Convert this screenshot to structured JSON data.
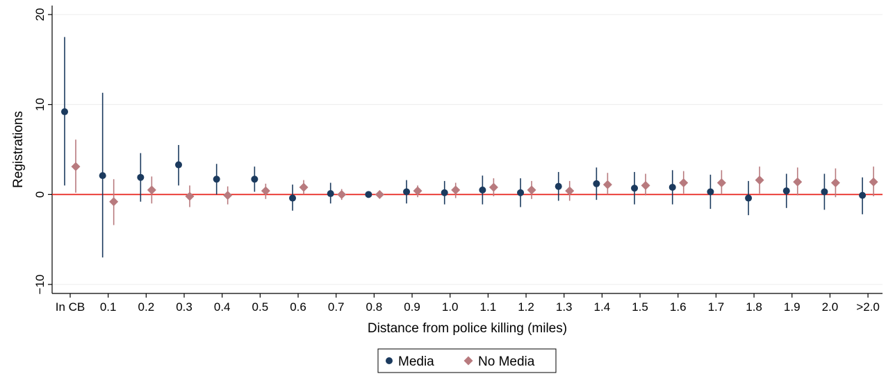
{
  "chart_data": {
    "type": "scatter",
    "xlabel": "Distance from police killing (miles)",
    "ylabel": "Registrations",
    "ylim": [
      -11,
      21
    ],
    "yticks": [
      -10,
      0,
      10,
      20
    ],
    "grid": true,
    "reference_line": {
      "y": 0,
      "color": "#e8221b"
    },
    "legend_position": "bottom-center",
    "categories": [
      "In CB",
      "0.1",
      "0.2",
      "0.3",
      "0.4",
      "0.5",
      "0.6",
      "0.7",
      "0.8",
      "0.9",
      "1.0",
      "1.1",
      "1.2",
      "1.3",
      "1.4",
      "1.5",
      "1.6",
      "1.7",
      "1.8",
      "1.9",
      "2.0",
      ">2.0"
    ],
    "series": [
      {
        "name": "Media",
        "marker": "circle",
        "color": "#1b3a5e",
        "values": [
          9.2,
          2.1,
          1.9,
          3.3,
          1.7,
          1.7,
          -0.4,
          0.1,
          0.0,
          0.3,
          0.2,
          0.5,
          0.2,
          0.9,
          1.2,
          0.7,
          0.8,
          0.3,
          -0.4,
          0.4,
          0.3,
          -0.1
        ],
        "lower": [
          1.0,
          -7.0,
          -0.8,
          1.0,
          0.0,
          0.3,
          -1.8,
          -1.0,
          0.0,
          -1.0,
          -1.1,
          -1.1,
          -1.4,
          -0.7,
          -0.6,
          -1.1,
          -1.1,
          -1.6,
          -2.3,
          -1.5,
          -1.7,
          -2.2
        ],
        "upper": [
          17.5,
          11.3,
          4.6,
          5.5,
          3.4,
          3.1,
          1.1,
          1.3,
          0.0,
          1.6,
          1.5,
          2.1,
          1.8,
          2.5,
          3.0,
          2.5,
          2.7,
          2.2,
          1.5,
          2.3,
          2.3,
          1.9
        ]
      },
      {
        "name": "No Media",
        "marker": "diamond",
        "color": "#b87a7e",
        "values": [
          3.1,
          -0.8,
          0.5,
          -0.2,
          -0.1,
          0.4,
          0.8,
          0.0,
          0.0,
          0.4,
          0.5,
          0.8,
          0.5,
          0.4,
          1.1,
          1.0,
          1.3,
          1.3,
          1.6,
          1.4,
          1.3,
          1.4
        ],
        "lower": [
          0.2,
          -3.4,
          -1.0,
          -1.4,
          -1.1,
          -0.5,
          0.0,
          -0.6,
          0.0,
          -0.3,
          -0.4,
          -0.2,
          -0.5,
          -0.7,
          0.0,
          -0.1,
          0.1,
          0.0,
          0.1,
          -0.1,
          -0.3,
          -0.2
        ],
        "upper": [
          6.1,
          1.7,
          2.0,
          1.0,
          0.9,
          1.2,
          1.6,
          0.6,
          0.0,
          1.0,
          1.3,
          1.8,
          1.5,
          1.5,
          2.4,
          2.3,
          2.6,
          2.7,
          3.1,
          3.0,
          2.9,
          3.1
        ]
      }
    ]
  }
}
